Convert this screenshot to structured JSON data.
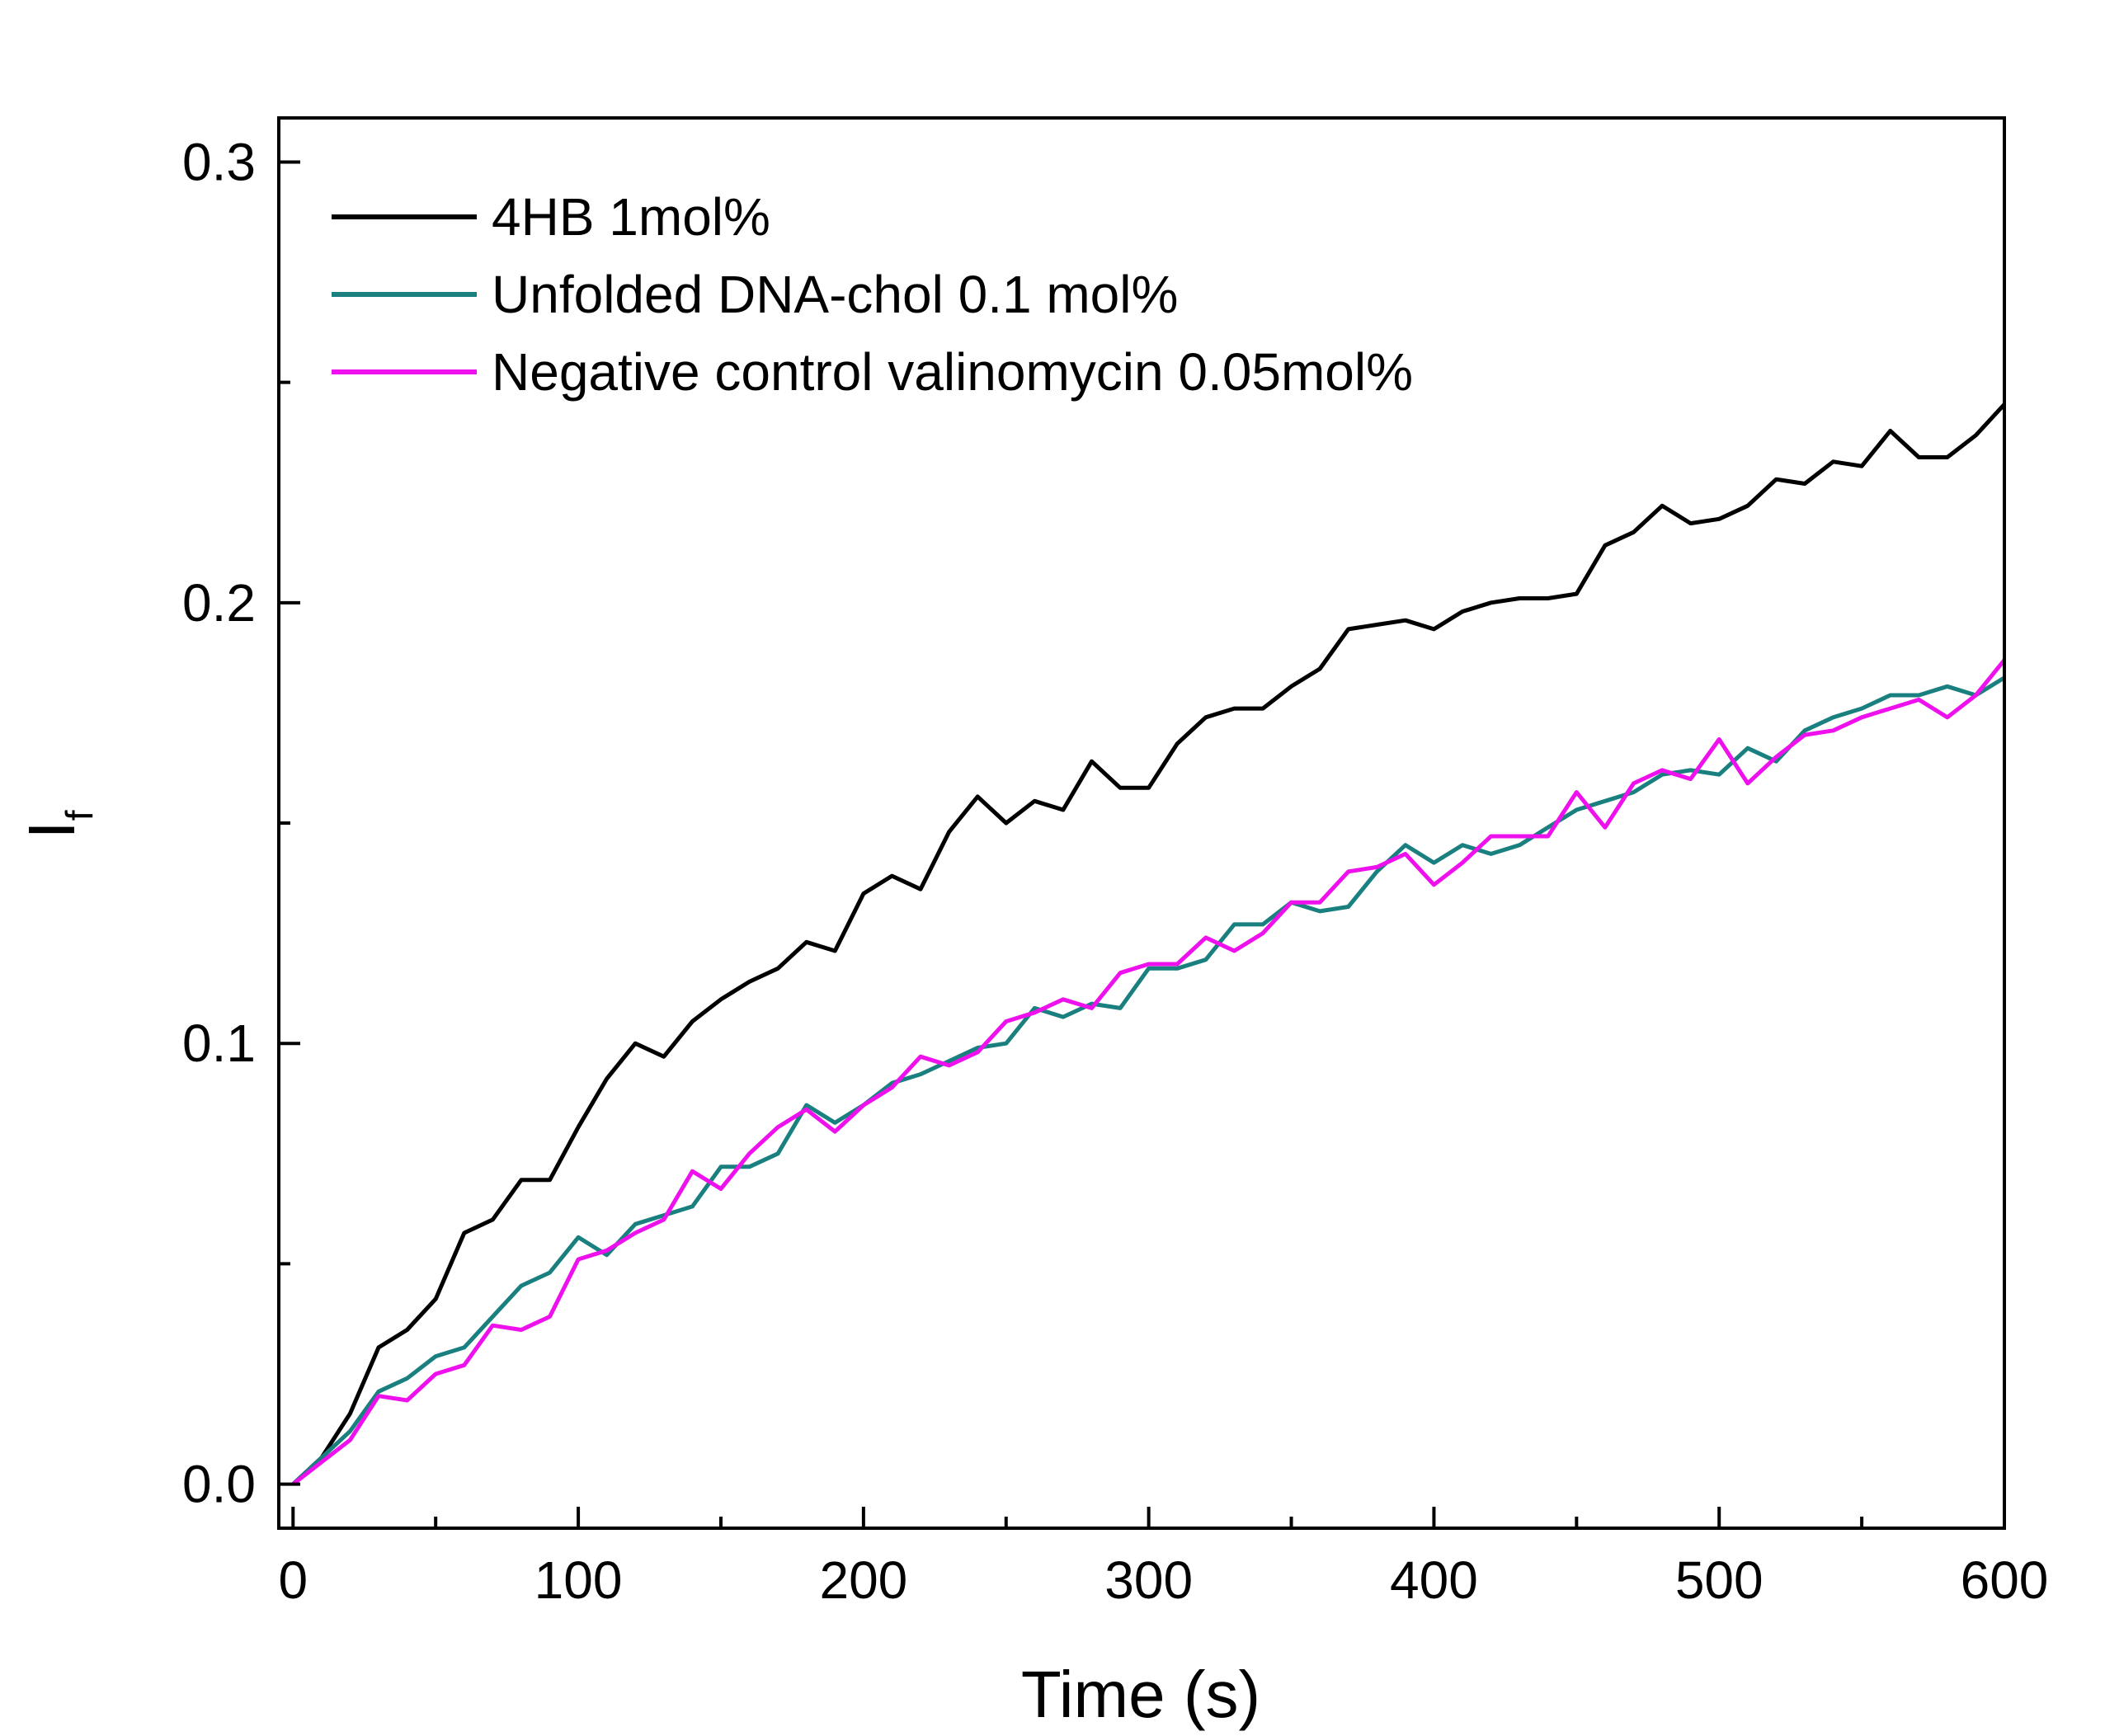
{
  "chart_data": {
    "type": "line",
    "xlabel": "Time (s)",
    "ylabel": "I",
    "ylabel_subscript": "f",
    "xlim": [
      -5,
      600
    ],
    "ylim": [
      -0.01,
      0.31
    ],
    "xticks": [
      0,
      100,
      200,
      300,
      400,
      500,
      600
    ],
    "xtick_labels": [
      "0",
      "100",
      "200",
      "300",
      "400",
      "500",
      "600"
    ],
    "xticks_minor": [
      50,
      150,
      250,
      350,
      450,
      550
    ],
    "yticks": [
      0.0,
      0.1,
      0.2,
      0.3
    ],
    "ytick_labels": [
      "0.0",
      "0.1",
      "0.2",
      "0.3"
    ],
    "yticks_minor": [
      0.05,
      0.15,
      0.25
    ],
    "grid": false,
    "legend_position": "top-left",
    "x": [
      0,
      10,
      20,
      30,
      40,
      50,
      60,
      70,
      80,
      90,
      100,
      110,
      120,
      130,
      140,
      150,
      160,
      170,
      180,
      190,
      200,
      210,
      220,
      230,
      240,
      250,
      260,
      270,
      280,
      290,
      300,
      310,
      320,
      330,
      340,
      350,
      360,
      370,
      380,
      390,
      400,
      410,
      420,
      430,
      440,
      450,
      460,
      470,
      480,
      490,
      500,
      510,
      520,
      530,
      540,
      550,
      560,
      570,
      580,
      590,
      600
    ],
    "series": [
      {
        "name": "4HB 1mol%",
        "color": "#000000",
        "values": [
          0.0,
          0.006,
          0.016,
          0.031,
          0.035,
          0.042,
          0.057,
          0.06,
          0.069,
          0.069,
          0.081,
          0.092,
          0.1,
          0.097,
          0.105,
          0.11,
          0.114,
          0.117,
          0.123,
          0.121,
          0.134,
          0.138,
          0.135,
          0.148,
          0.156,
          0.15,
          0.155,
          0.153,
          0.164,
          0.158,
          0.158,
          0.168,
          0.174,
          0.176,
          0.176,
          0.181,
          0.185,
          0.194,
          0.195,
          0.196,
          0.194,
          0.198,
          0.2,
          0.201,
          0.201,
          0.202,
          0.213,
          0.216,
          0.222,
          0.218,
          0.219,
          0.222,
          0.228,
          0.227,
          0.232,
          0.231,
          0.239,
          0.233,
          0.233,
          0.238,
          0.245
        ]
      },
      {
        "name": "Unfolded DNA-chol 0.1 mol%",
        "color": "#1a7f7f",
        "values": [
          0.0,
          0.006,
          0.012,
          0.021,
          0.024,
          0.029,
          0.031,
          0.038,
          0.045,
          0.048,
          0.056,
          0.052,
          0.059,
          0.061,
          0.063,
          0.072,
          0.072,
          0.075,
          0.086,
          0.082,
          0.086,
          0.091,
          0.093,
          0.096,
          0.099,
          0.1,
          0.108,
          0.106,
          0.109,
          0.108,
          0.117,
          0.117,
          0.119,
          0.127,
          0.127,
          0.132,
          0.13,
          0.131,
          0.139,
          0.145,
          0.141,
          0.145,
          0.143,
          0.145,
          0.149,
          0.153,
          0.155,
          0.157,
          0.161,
          0.162,
          0.161,
          0.167,
          0.164,
          0.171,
          0.174,
          0.176,
          0.179,
          0.179,
          0.181,
          0.179,
          0.183
        ]
      },
      {
        "name": "Negative control valinomycin 0.05mol%",
        "color": "#ee11ee",
        "values": [
          0.0,
          0.005,
          0.01,
          0.02,
          0.019,
          0.025,
          0.027,
          0.036,
          0.035,
          0.038,
          0.051,
          0.053,
          0.057,
          0.06,
          0.071,
          0.067,
          0.075,
          0.081,
          0.085,
          0.08,
          0.086,
          0.09,
          0.097,
          0.095,
          0.098,
          0.105,
          0.107,
          0.11,
          0.108,
          0.116,
          0.118,
          0.118,
          0.124,
          0.121,
          0.125,
          0.132,
          0.132,
          0.139,
          0.14,
          0.143,
          0.136,
          0.141,
          0.147,
          0.147,
          0.147,
          0.157,
          0.149,
          0.159,
          0.162,
          0.16,
          0.169,
          0.159,
          0.165,
          0.17,
          0.171,
          0.174,
          0.176,
          0.178,
          0.174,
          0.179,
          0.187
        ]
      }
    ]
  }
}
